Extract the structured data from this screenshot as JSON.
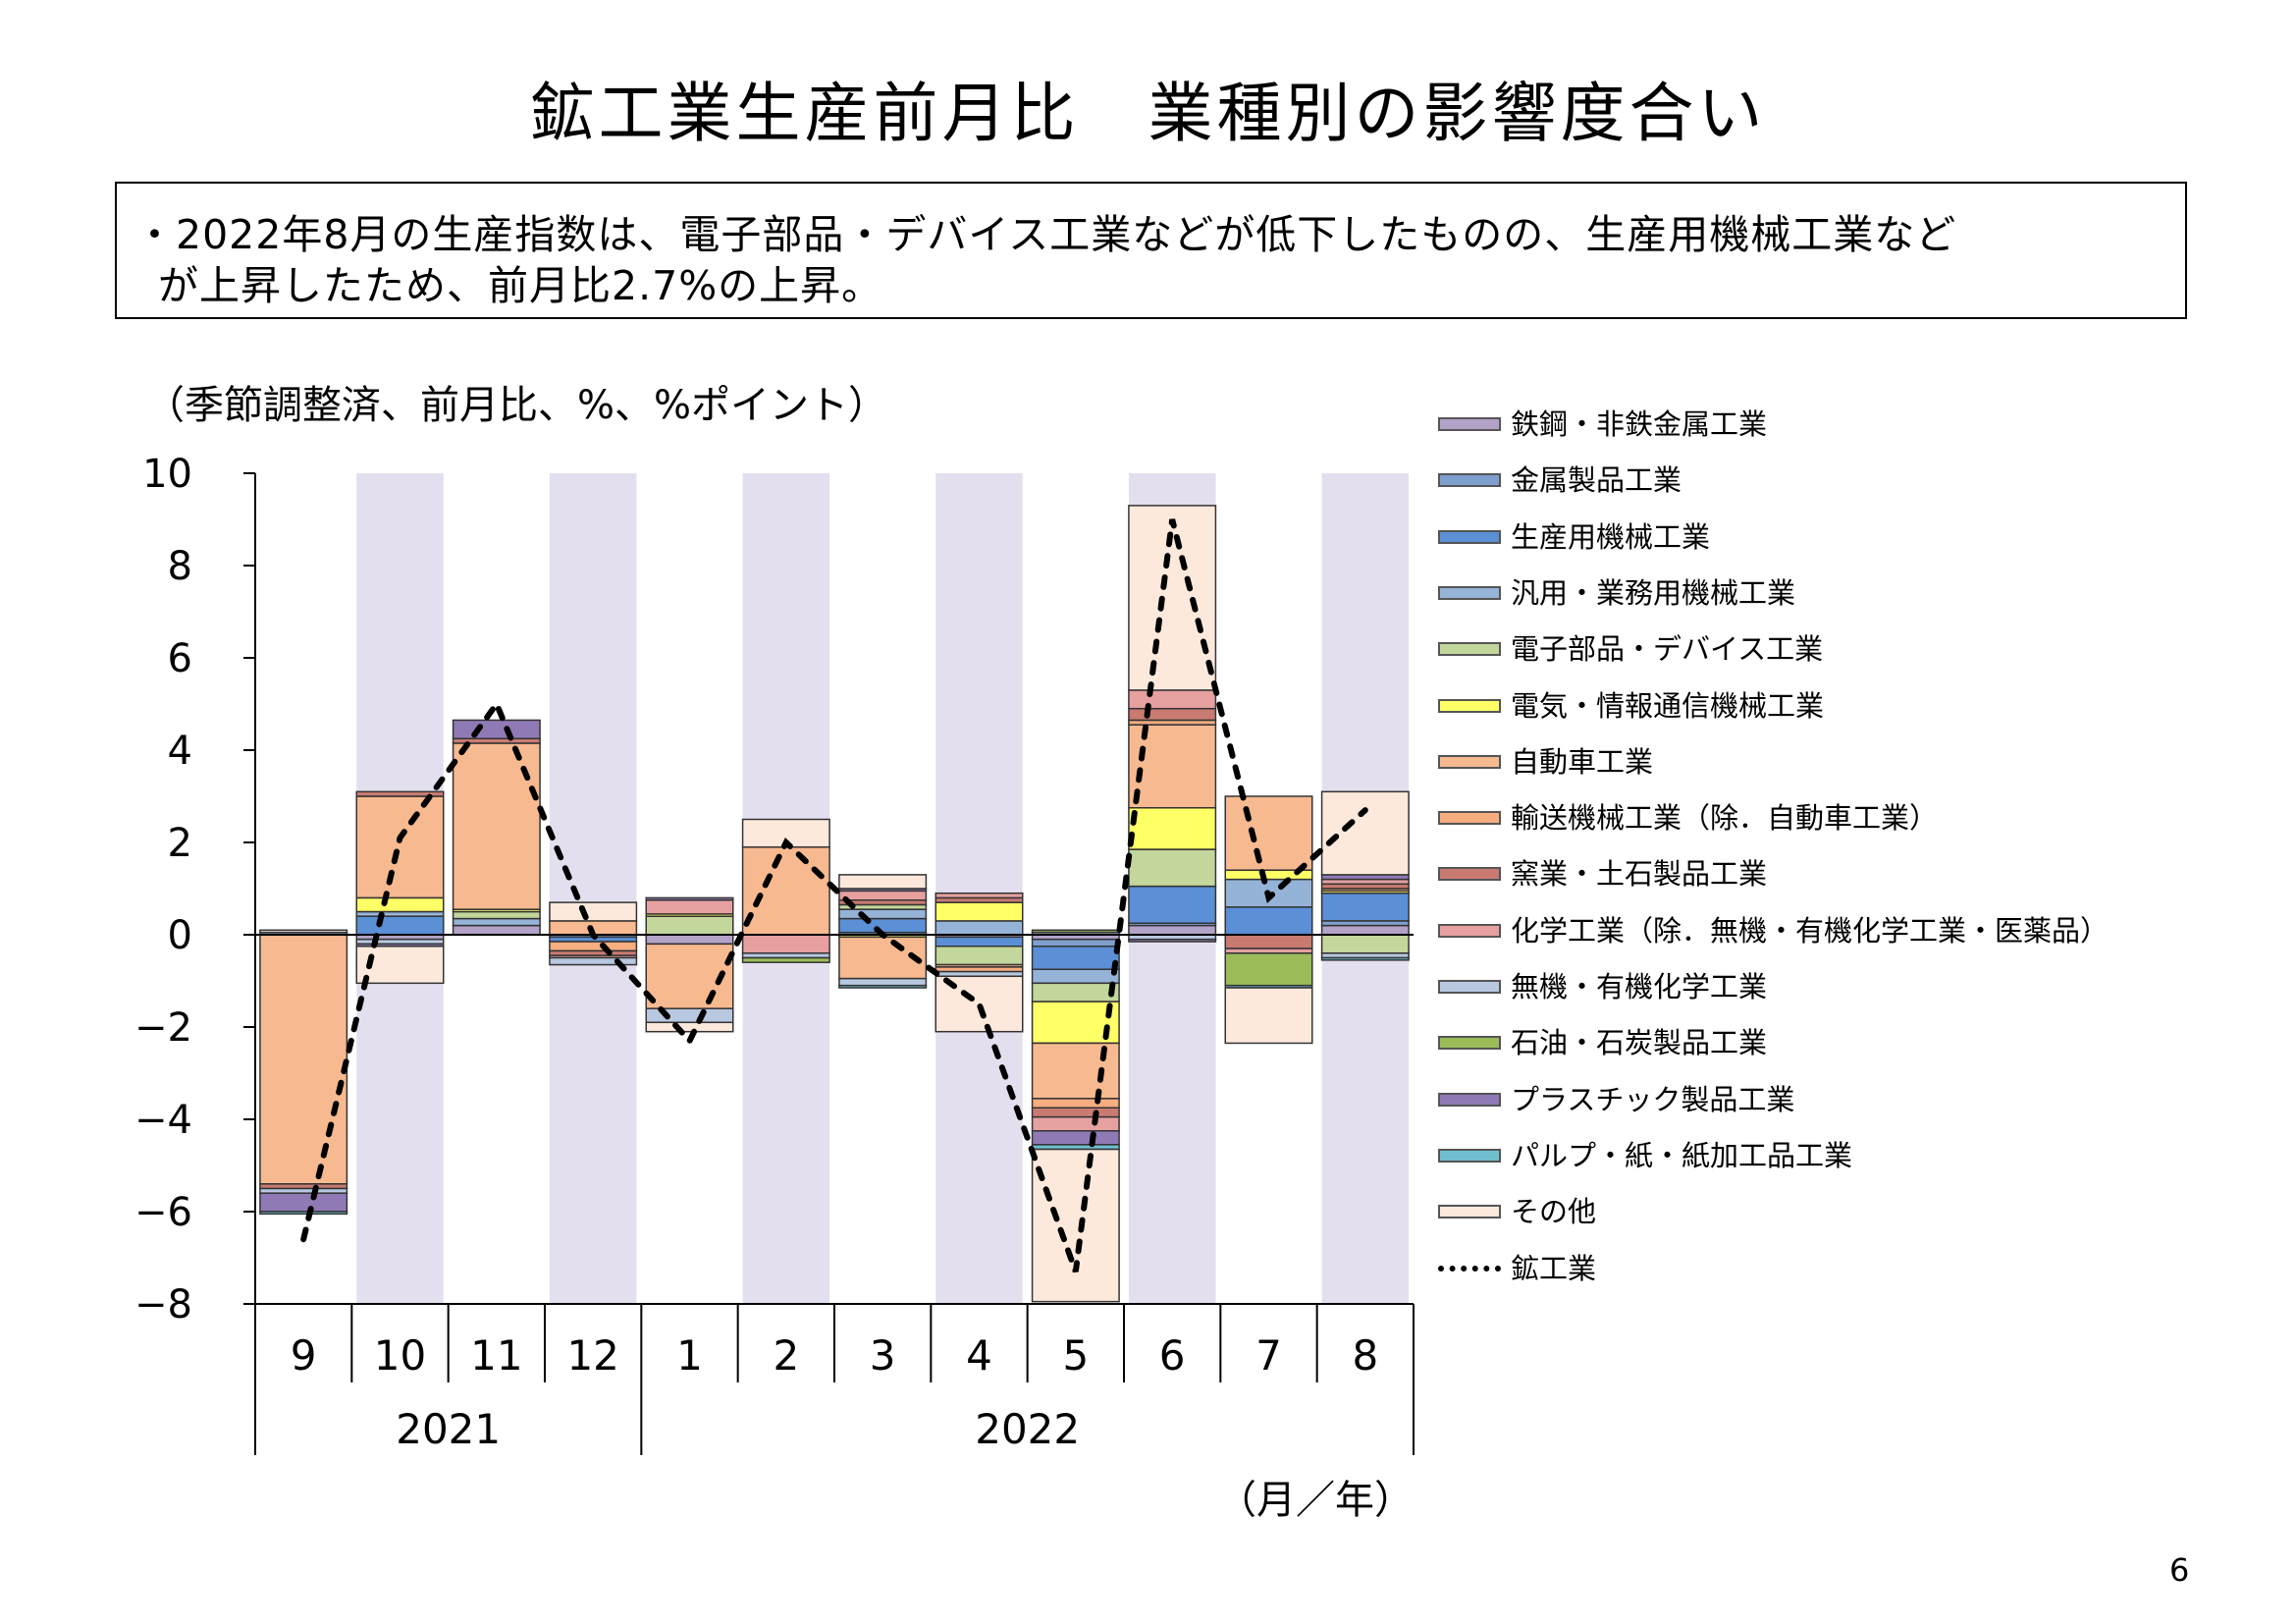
{
  "title": "鉱工業生産前月比　業種別の影響度合い",
  "summary": {
    "line1": "・2022年8月の生産指数は、電子部品・デバイス工業などが低下したものの、生産用機械工業など",
    "line2": "が上昇したため、前月比2.7%の上昇。"
  },
  "unit_note": "（季節調整済、前月比、%、%ポイント）",
  "x_unit_note": "（月／年）",
  "page_number": "6",
  "chart_data": {
    "type": "bar",
    "stacked": true,
    "ylim": [
      -8,
      10
    ],
    "yticks": [
      "10",
      "8",
      "6",
      "4",
      "2",
      "0",
      "-2",
      "-4",
      "-6",
      "-8"
    ],
    "categories": [
      "9",
      "10",
      "11",
      "12",
      "1",
      "2",
      "3",
      "4",
      "5",
      "6",
      "7",
      "8"
    ],
    "year_labels": [
      {
        "label": "2021",
        "start": 0,
        "end": 3
      },
      {
        "label": "2022",
        "start": 4,
        "end": 11
      }
    ],
    "shaded_categories": [
      1,
      3,
      5,
      7,
      9,
      11
    ],
    "shade_color": "#e4dfee",
    "series": [
      {
        "name": "鉄鋼・非鉄金属工業",
        "color": "#b3a2c7",
        "values": [
          0,
          -0.1,
          0.2,
          0,
          -0.2,
          0,
          0,
          -0.05,
          -0.1,
          0.2,
          0,
          0.2
        ]
      },
      {
        "name": "金属製品工業",
        "color": "#7f9fcf",
        "values": [
          0.05,
          0,
          0,
          -0.05,
          0,
          0,
          0.05,
          0,
          -0.15,
          0.05,
          0,
          0.1
        ]
      },
      {
        "name": "生産用機械工業",
        "color": "#5b8fd6",
        "values": [
          0,
          0.4,
          0,
          -0.1,
          0,
          0,
          0.3,
          -0.2,
          -0.5,
          0.8,
          0.6,
          0.6
        ]
      },
      {
        "name": "汎用・業務用機械工業",
        "color": "#95b3d7",
        "values": [
          0,
          0.1,
          0.15,
          0,
          0,
          0,
          0.2,
          0.3,
          -0.3,
          0,
          0.6,
          0
        ]
      },
      {
        "name": "電子部品・デバイス工業",
        "color": "#c3d69b",
        "values": [
          0,
          0,
          0.15,
          0,
          0.4,
          0,
          0.1,
          -0.4,
          -0.4,
          0.8,
          0,
          -0.4
        ]
      },
      {
        "name": "電気・情報通信機械工業",
        "color": "#ffff66",
        "values": [
          0,
          0.3,
          0.05,
          0,
          0.05,
          0,
          -0.05,
          0.4,
          -0.9,
          0.9,
          0.2,
          0.05
        ]
      },
      {
        "name": "自動車工業",
        "color": "#f7b98f",
        "values": [
          -5.4,
          2.2,
          3.6,
          0.3,
          -1.4,
          1.9,
          -0.9,
          -0.05,
          -1.2,
          1.8,
          1.6,
          0
        ]
      },
      {
        "name": "輸送機械工業（除．自動車工業）",
        "color": "#f6ad80",
        "values": [
          0,
          0,
          0,
          -0.2,
          0,
          0,
          0,
          -0.1,
          -0.2,
          0.1,
          0,
          0.05
        ]
      },
      {
        "name": "窯業・土石製品工業",
        "color": "#c97b72",
        "values": [
          -0.1,
          0.1,
          0.1,
          -0.1,
          0,
          0,
          0.1,
          0.1,
          -0.2,
          0.25,
          -0.3,
          0.1
        ]
      },
      {
        "name": "化学工業（除．無機・有機化学工業・医薬品）",
        "color": "#e6a0a0",
        "values": [
          0,
          0,
          0,
          -0.05,
          0.3,
          -0.4,
          0.2,
          0.1,
          -0.3,
          0.4,
          -0.1,
          0.1
        ]
      },
      {
        "name": "無機・有機化学工業",
        "color": "#b8c8e0",
        "values": [
          -0.1,
          -0.1,
          0,
          -0.15,
          -0.3,
          -0.1,
          -0.15,
          -0.1,
          0.05,
          -0.1,
          0,
          -0.1
        ]
      },
      {
        "name": "石油・石炭製品工業",
        "color": "#9bbb59",
        "values": [
          0,
          0,
          0,
          0,
          0,
          -0.1,
          0,
          0,
          0.05,
          0,
          -0.7,
          0
        ]
      },
      {
        "name": "プラスチック製品工業",
        "color": "#8f7ab5",
        "values": [
          -0.4,
          -0.05,
          0.4,
          0,
          0.05,
          0,
          0.05,
          0,
          -0.3,
          -0.05,
          0,
          0.1
        ]
      },
      {
        "name": "パルプ・紙・紙加工品工業",
        "color": "#6fbfd0",
        "values": [
          -0.05,
          0,
          0,
          0,
          0,
          0,
          -0.05,
          0,
          -0.1,
          0,
          -0.05,
          -0.05
        ]
      },
      {
        "name": "その他",
        "color": "#fde9dc",
        "values": [
          0.05,
          -0.8,
          0,
          0.4,
          -0.2,
          0.6,
          0.3,
          -1.2,
          -3.3,
          4.0,
          -1.2,
          1.8
        ]
      }
    ],
    "total_line": {
      "name": "鉱工業",
      "color": "#000000",
      "values": [
        -6.6,
        2.1,
        5.0,
        0,
        -2.3,
        2.0,
        0,
        -1.5,
        -7.3,
        9.0,
        0.8,
        2.7
      ]
    }
  }
}
